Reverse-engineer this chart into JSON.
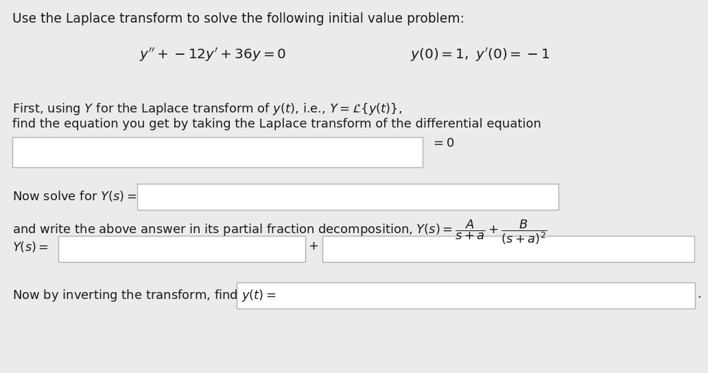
{
  "bg_color": "#ebebeb",
  "white": "#ffffff",
  "text_color": "#1a1a1a",
  "border_color": "#b0b0b0",
  "title_text": "Use the Laplace transform to solve the following initial value problem:",
  "equation_ode": "$y'' + -12y' + 36y = 0$",
  "equation_ic": "$y(0) = 1,\\ y'(0) = -1$",
  "line1": "First, using $Y$ for the Laplace transform of $y(t)$, i.e., $Y = \\mathcal{L}\\{y(t)\\}$,",
  "line2": "find the equation you get by taking the Laplace transform of the differential equation",
  "equals_zero": "$= 0$",
  "now_solve": "Now solve for $Y(s) =$",
  "partial_frac": "and write the above answer in its partial fraction decomposition, $Y(s) = \\dfrac{A}{s+a} + \\dfrac{B}{(s+a)^2}$",
  "Ys_label": "$Y(s) =$",
  "plus_sign": "+",
  "invert_text": "Now by inverting the transform, find $y(t) =$",
  "period": ".",
  "title_fs": 13.5,
  "body_fs": 13.0,
  "eq_fs": 14.5
}
